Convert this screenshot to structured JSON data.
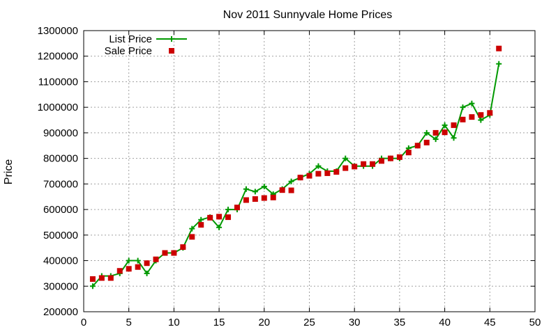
{
  "chart_data": {
    "type": "line",
    "title": "Nov 2011 Sunnyvale Home Prices",
    "xlabel": "",
    "ylabel": "Price",
    "xlim": [
      0,
      50
    ],
    "ylim": [
      200000,
      1300000
    ],
    "xticks": [
      0,
      5,
      10,
      15,
      20,
      25,
      30,
      35,
      40,
      45,
      50
    ],
    "yticks": [
      200000,
      300000,
      400000,
      500000,
      600000,
      700000,
      800000,
      900000,
      1000000,
      1100000,
      1200000,
      1300000
    ],
    "grid": true,
    "legend_position": "top-left",
    "series": [
      {
        "name": "List Price",
        "style": "line+plus-markers",
        "color": "#009900",
        "x": [
          1,
          2,
          3,
          4,
          5,
          6,
          7,
          8,
          9,
          10,
          11,
          12,
          13,
          14,
          15,
          16,
          17,
          18,
          19,
          20,
          21,
          22,
          23,
          24,
          25,
          26,
          27,
          28,
          29,
          30,
          31,
          32,
          33,
          34,
          35,
          36,
          37,
          38,
          39,
          40,
          41,
          42,
          43,
          44,
          45,
          46
        ],
        "values": [
          300000,
          340000,
          340000,
          350000,
          400000,
          400000,
          350000,
          400000,
          430000,
          430000,
          450000,
          525000,
          560000,
          570000,
          530000,
          600000,
          600000,
          680000,
          670000,
          690000,
          660000,
          680000,
          710000,
          725000,
          740000,
          770000,
          750000,
          750000,
          800000,
          770000,
          770000,
          770000,
          800000,
          800000,
          800000,
          840000,
          850000,
          900000,
          875000,
          930000,
          880000,
          1000000,
          1015000,
          950000,
          970000,
          1170000
        ]
      },
      {
        "name": "Sale Price",
        "style": "square-markers",
        "color": "#cc0000",
        "x": [
          1,
          2,
          3,
          4,
          5,
          6,
          7,
          8,
          9,
          10,
          11,
          12,
          13,
          14,
          15,
          16,
          17,
          18,
          19,
          20,
          21,
          22,
          23,
          24,
          25,
          26,
          27,
          28,
          29,
          30,
          31,
          32,
          33,
          34,
          35,
          36,
          37,
          38,
          39,
          40,
          41,
          42,
          43,
          44,
          45,
          46
        ],
        "values": [
          328000,
          332000,
          332000,
          360000,
          368000,
          375000,
          390000,
          405000,
          430000,
          430000,
          453000,
          493000,
          540000,
          568000,
          572000,
          570000,
          608000,
          637000,
          641000,
          645000,
          647000,
          676000,
          675000,
          725000,
          732000,
          740000,
          742000,
          747000,
          762000,
          768000,
          778000,
          778000,
          790000,
          800000,
          805000,
          823000,
          850000,
          862000,
          900000,
          902000,
          930000,
          952000,
          962000,
          970000,
          978000,
          1230000
        ]
      }
    ]
  }
}
